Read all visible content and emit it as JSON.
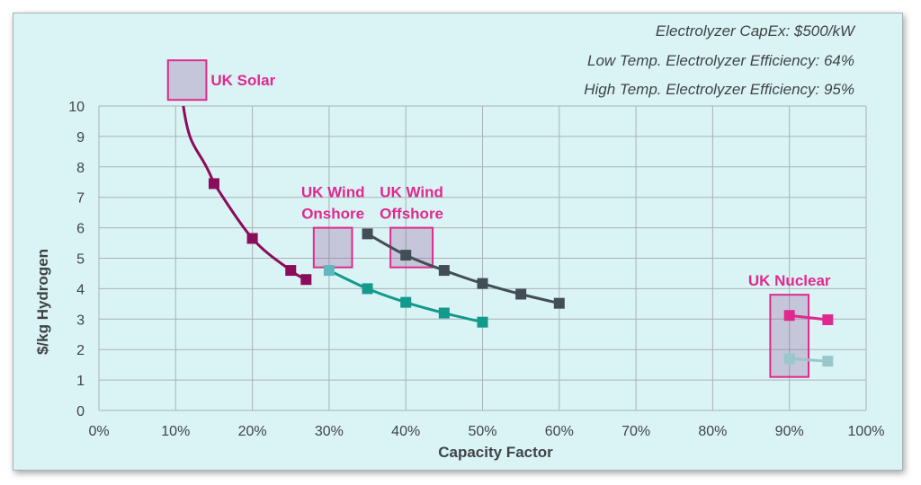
{
  "chart_data": {
    "type": "line",
    "xlabel": "Capacity Factor",
    "ylabel": "$/kg Hydrogen",
    "xlim": [
      0,
      100
    ],
    "ylim": [
      0,
      10
    ],
    "x_ticks": [
      "0%",
      "10%",
      "20%",
      "30%",
      "40%",
      "50%",
      "60%",
      "70%",
      "80%",
      "90%",
      "100%"
    ],
    "y_ticks": [
      "0",
      "1",
      "2",
      "3",
      "4",
      "5",
      "6",
      "7",
      "8",
      "9",
      "10"
    ],
    "grid": true,
    "annotations": [
      "Electrolyzer CapEx: $500/kW",
      "Low Temp. Electrolyzer  Efficiency: 64%",
      "High Temp. Electrolyzer Efficiency: 95%"
    ],
    "callouts": [
      {
        "id": "solar",
        "lines": [
          "UK Solar"
        ],
        "x_range": [
          9,
          14
        ],
        "y_range": [
          10.2,
          11.5
        ]
      },
      {
        "id": "wind-onshore",
        "lines": [
          "UK Wind",
          "Onshore"
        ],
        "x_range": [
          28,
          33
        ],
        "y_range": [
          4.7,
          6.0
        ]
      },
      {
        "id": "wind-offshore",
        "lines": [
          "UK Wind",
          "Offshore"
        ],
        "x_range": [
          38,
          43.5
        ],
        "y_range": [
          4.7,
          6.0
        ]
      },
      {
        "id": "nuclear",
        "lines": [
          "UK Nuclear"
        ],
        "x_range": [
          87.5,
          92.5
        ],
        "y_range": [
          1.1,
          3.8
        ]
      }
    ],
    "series": [
      {
        "color": "#8a0c5a",
        "marker": true,
        "lead_in": [
          11,
          10.0
        ],
        "x": [
          15,
          20,
          25,
          27
        ],
        "y": [
          7.45,
          5.65,
          4.6,
          4.3
        ]
      },
      {
        "color": "#424e56",
        "marker": true,
        "x": [
          35,
          40,
          45,
          50,
          55,
          60
        ],
        "y": [
          5.8,
          5.1,
          4.6,
          4.17,
          3.82,
          3.52
        ]
      },
      {
        "color": "#129a8c",
        "marker": true,
        "first_marker_color": "#5fb8be",
        "x": [
          30,
          35,
          40,
          45,
          50
        ],
        "y": [
          4.6,
          4.0,
          3.55,
          3.2,
          2.9
        ]
      },
      {
        "color": "#e0298e",
        "marker": true,
        "x": [
          90,
          95
        ],
        "y": [
          3.12,
          2.98
        ]
      },
      {
        "color": "#98c7cc",
        "marker": true,
        "x": [
          90,
          95
        ],
        "y": [
          1.7,
          1.62
        ]
      }
    ]
  }
}
